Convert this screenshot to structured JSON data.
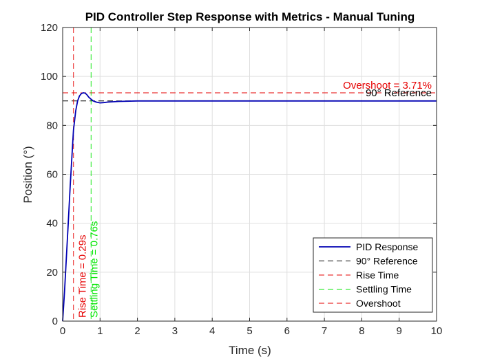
{
  "chart_data": {
    "type": "line",
    "title": "PID Controller Step Response with Metrics - Manual Tuning",
    "xlabel": "Time (s)",
    "ylabel": "Position (°)",
    "xlim": [
      0,
      10
    ],
    "ylim": [
      0,
      120
    ],
    "xticks": [
      "0",
      "1",
      "2",
      "3",
      "4",
      "5",
      "6",
      "7",
      "8",
      "9",
      "10"
    ],
    "yticks": [
      "0",
      "20",
      "40",
      "60",
      "80",
      "100",
      "120"
    ],
    "grid": true,
    "legend_position": "bottom-right",
    "series": [
      {
        "name": "PID Response",
        "color": "#0000B3",
        "style": "solid",
        "x": [
          0,
          0.05,
          0.1,
          0.15,
          0.2,
          0.25,
          0.29,
          0.35,
          0.4,
          0.45,
          0.5,
          0.55,
          0.6,
          0.65,
          0.7,
          0.76,
          0.82,
          0.9,
          1.0,
          1.1,
          1.2,
          1.5,
          2,
          3,
          4,
          5,
          6,
          7,
          8,
          9,
          10
        ],
        "y": [
          0,
          12,
          26,
          40,
          55,
          68,
          78,
          86,
          90,
          92,
          93,
          93.3,
          93.2,
          92.5,
          91.5,
          90.7,
          90,
          89.5,
          89.2,
          89.3,
          89.5,
          89.8,
          90,
          90,
          90,
          90,
          90,
          90,
          90,
          90,
          90
        ]
      },
      {
        "name": "90° Reference",
        "color": "#000000",
        "style": "dashed",
        "y": 90
      },
      {
        "name": "Rise Time",
        "color": "#E60000",
        "style": "dashed",
        "x": 0.29
      },
      {
        "name": "Settling Time",
        "color": "#00E600",
        "style": "dashed",
        "x": 0.76
      },
      {
        "name": "Overshoot",
        "color": "#E60000",
        "style": "dashed",
        "y": 93.3
      }
    ],
    "annotations": {
      "rise_time": "Rise Time = 0.29s",
      "settling_time": "Settling Time = 0.76s",
      "overshoot": "Overshoot = 3.71%",
      "reference": "90° Reference"
    }
  }
}
